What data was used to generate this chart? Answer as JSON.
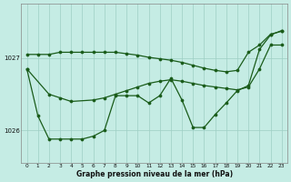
{
  "xlabel": "Graphe pression niveau de la mer (hPa)",
  "background_color": "#c5ece4",
  "line_color": "#1a5c1a",
  "xlim": [
    -0.5,
    23.5
  ],
  "ylim": [
    1025.55,
    1027.75
  ],
  "yticks": [
    1026,
    1027
  ],
  "xticks": [
    0,
    1,
    2,
    3,
    4,
    5,
    6,
    7,
    8,
    9,
    10,
    11,
    12,
    13,
    14,
    15,
    16,
    17,
    18,
    19,
    20,
    21,
    22,
    23
  ],
  "line1_x": [
    0,
    1,
    2,
    3,
    4,
    5,
    6,
    7,
    8,
    9,
    10,
    11,
    12,
    13,
    14,
    15,
    16,
    17,
    18,
    19,
    20,
    21,
    22,
    23
  ],
  "line1_y": [
    1026.85,
    1026.2,
    1025.88,
    1025.88,
    1025.88,
    1025.88,
    1025.92,
    1026.0,
    1026.48,
    1026.48,
    1026.48,
    1026.38,
    1026.48,
    1026.72,
    1026.42,
    1026.04,
    1026.04,
    1026.22,
    1026.38,
    1026.55,
    1026.62,
    1027.12,
    1027.32,
    1027.38
  ],
  "line2_x": [
    0,
    1,
    2,
    3,
    4,
    5,
    6,
    7,
    8,
    9,
    10,
    11,
    12,
    13,
    14,
    15,
    16,
    17,
    18,
    19,
    20,
    21,
    22,
    23
  ],
  "line2_y": [
    1027.05,
    1027.05,
    1027.05,
    1027.08,
    1027.08,
    1027.08,
    1027.08,
    1027.08,
    1027.08,
    1027.06,
    1027.04,
    1027.01,
    1026.99,
    1026.97,
    1026.94,
    1026.9,
    1026.86,
    1026.83,
    1026.81,
    1026.83,
    1027.08,
    1027.18,
    1027.33,
    1027.37
  ],
  "line3_x": [
    0,
    2,
    3,
    4,
    6,
    7,
    8,
    9,
    10,
    11,
    12,
    13,
    14,
    15,
    16,
    17,
    18,
    19,
    20,
    21,
    22,
    23
  ],
  "line3_y": [
    1026.85,
    1026.5,
    1026.45,
    1026.4,
    1026.42,
    1026.45,
    1026.5,
    1026.55,
    1026.6,
    1026.65,
    1026.68,
    1026.7,
    1026.68,
    1026.65,
    1026.62,
    1026.6,
    1026.58,
    1026.56,
    1026.6,
    1026.85,
    1027.18,
    1027.18
  ]
}
